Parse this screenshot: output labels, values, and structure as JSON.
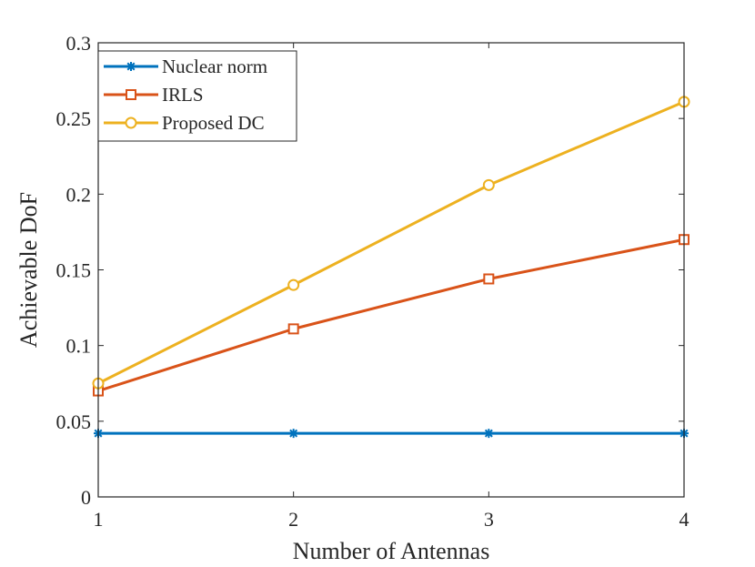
{
  "chart_data": {
    "type": "line",
    "title": "",
    "xlabel": "Number of Antennas",
    "ylabel": "Achievable DoF",
    "xlim": [
      1,
      4
    ],
    "ylim": [
      0,
      0.3
    ],
    "x": [
      1,
      2,
      3,
      4
    ],
    "xticks": [
      1,
      2,
      3,
      4
    ],
    "xtick_labels": [
      "1",
      "2",
      "3",
      "4"
    ],
    "yticks": [
      0,
      0.05,
      0.1,
      0.15,
      0.2,
      0.25,
      0.3
    ],
    "ytick_labels": [
      "0",
      "0.05",
      "0.1",
      "0.15",
      "0.2",
      "0.25",
      "0.3"
    ],
    "grid": false,
    "legend_position": "top-left",
    "series": [
      {
        "name": "Nuclear norm",
        "values": [
          0.042,
          0.042,
          0.042,
          0.042
        ],
        "color": "#0072BD",
        "marker": "asterisk"
      },
      {
        "name": "IRLS",
        "values": [
          0.07,
          0.111,
          0.144,
          0.17
        ],
        "color": "#D95319",
        "marker": "square"
      },
      {
        "name": "Proposed DC",
        "values": [
          0.075,
          0.14,
          0.206,
          0.261
        ],
        "color": "#EDB120",
        "marker": "circle"
      }
    ]
  }
}
